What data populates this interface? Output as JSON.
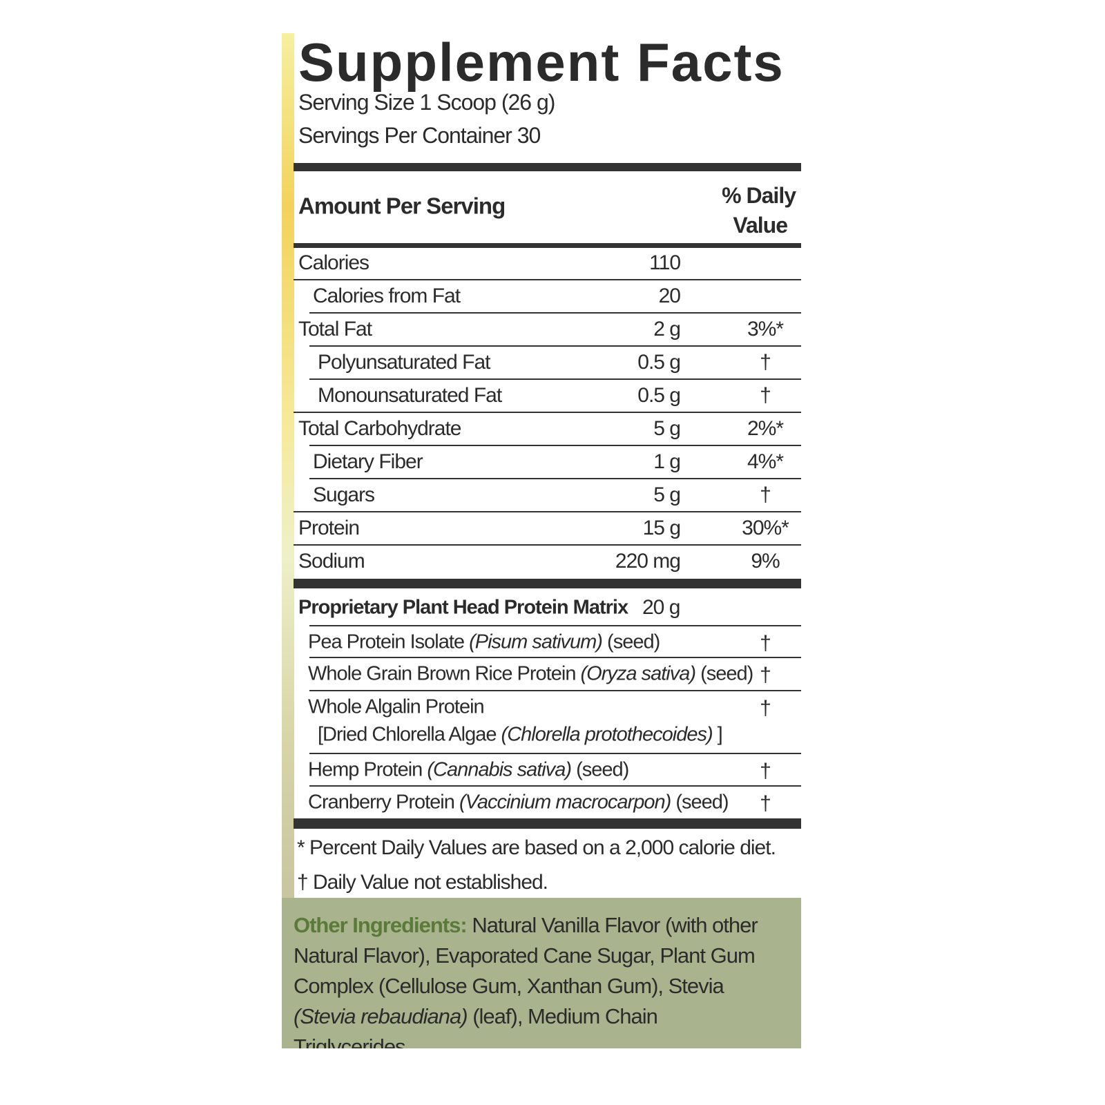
{
  "title": "Supplement Facts",
  "serving_size": "Serving Size 1 Scoop (26 g)",
  "servings_per_container": "Servings Per Container 30",
  "header": {
    "amount": "Amount Per Serving",
    "daily_value_line1": "% Daily",
    "daily_value_line2": "Value"
  },
  "nutrients": [
    {
      "name": "Calories",
      "amount": "110"
    },
    {
      "name": "Calories from Fat",
      "amount": "20"
    },
    {
      "name": "Total Fat",
      "amount": "2 g",
      "dv": "3%*"
    },
    {
      "name": "Polyunsaturated Fat",
      "amount": "0.5 g",
      "dv": "†"
    },
    {
      "name": "Monounsaturated Fat",
      "amount": "0.5 g",
      "dv": "†"
    },
    {
      "name": "Total Carbohydrate",
      "amount": "5 g",
      "dv": "2%*"
    },
    {
      "name": "Dietary Fiber",
      "amount": "1 g",
      "dv": "4%*"
    },
    {
      "name": "Sugars",
      "amount": "5 g",
      "dv": "†"
    },
    {
      "name": "Protein",
      "amount": "15 g",
      "dv": "30%*"
    },
    {
      "name": "Sodium",
      "amount": "220 mg",
      "dv": "9%"
    }
  ],
  "blend": {
    "name": "Proprietary Plant Head Protein Matrix",
    "amount": "20 g",
    "ingredients": [
      {
        "name": "Pea Protein Isolate",
        "latin": "(Pisum sativum)",
        "part": "(seed)",
        "dv": "†"
      },
      {
        "name": "Whole Grain Brown Rice Protein",
        "latin": "(Oryza sativa)",
        "part": "(seed)",
        "dv": "†"
      },
      {
        "name": "Whole Algalin Protein",
        "dv": "†",
        "sub": "[Dried Chlorella Algae",
        "sub_latin": "(Chlorella protothecoides)",
        "sub_end": "]"
      },
      {
        "name": "Hemp Protein",
        "latin": "(Cannabis sativa)",
        "part": "(seed)",
        "dv": "†"
      },
      {
        "name": "Cranberry Protein",
        "latin": "(Vaccinium macrocarpon)",
        "part": "(seed)",
        "dv": "†"
      }
    ]
  },
  "footnotes": [
    "* Percent Daily Values are based on a 2,000 calorie diet.",
    "† Daily Value not established."
  ],
  "other_ingredients": {
    "label": "Other Ingredients:",
    "text": "Natural Vanilla Flavor (with other Natural Flavor), Evaporated Cane Sugar, Plant Gum Complex (Cellulose Gum, Xanthan Gum), Stevia",
    "latin": "(Stevia rebaudiana)",
    "rest": "(leaf), Medium Chain Triglycerides."
  }
}
